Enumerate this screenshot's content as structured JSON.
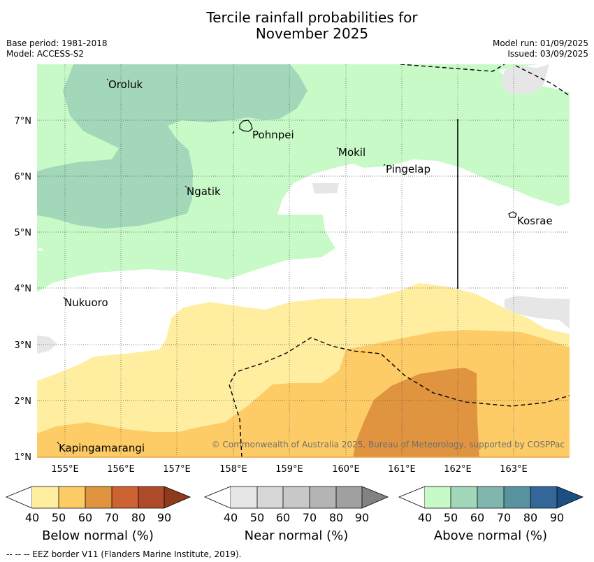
{
  "title_line1": "Tercile rainfall probabilities for",
  "title_line2": "November 2025",
  "info": {
    "base_period": "Base period: 1981-2018",
    "model": "Model: ACCESS-S2",
    "model_run": "Model run: 01/09/2025",
    "issued": "Issued: 03/09/2025"
  },
  "places": {
    "oroluk": "Oroluk",
    "pohnpei": "Pohnpei",
    "mokil": "Mokil",
    "pingelap": "Pingelap",
    "ngatik": "Ngatik",
    "kosrae": "Kosrae",
    "nukuoro": "Nukuoro",
    "kapingamarangi": "Kapingamarangi"
  },
  "lon_ticks": [
    "155°E",
    "156°E",
    "157°E",
    "158°E",
    "159°E",
    "160°E",
    "161°E",
    "162°E",
    "163°E"
  ],
  "lat_ticks": [
    "7°N",
    "6°N",
    "5°N",
    "4°N",
    "3°N",
    "2°N",
    "1°N"
  ],
  "copyright": "© Commonwealth of Australia 2025, Bureau of Meteorology, supported by COSPPac",
  "legends": {
    "below": {
      "title": "Below normal (%)",
      "colors": [
        "#ffeda0",
        "#fecc66",
        "#e09440",
        "#cd6233",
        "#b04b29",
        "#8e3a1c"
      ]
    },
    "near": {
      "title": "Near normal (%)",
      "colors": [
        "#e6e6e6",
        "#d7d7d7",
        "#c8c8c8",
        "#b4b4b4",
        "#a0a0a0",
        "#828282"
      ]
    },
    "above": {
      "title": "Above normal (%)",
      "colors": [
        "#c8fac8",
        "#a2d7ba",
        "#80b6ae",
        "#5a93a0",
        "#336699",
        "#1b4f82"
      ]
    },
    "ticks": [
      "40",
      "50",
      "60",
      "70",
      "80",
      "90"
    ]
  },
  "footer": "-- -- -- EEZ border V11 (Flanders Marine Institute, 2019)."
}
